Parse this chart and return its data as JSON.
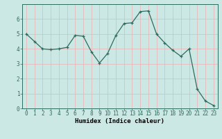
{
  "x": [
    0,
    1,
    2,
    3,
    4,
    5,
    6,
    7,
    8,
    9,
    10,
    11,
    12,
    13,
    14,
    15,
    16,
    17,
    18,
    19,
    20,
    21,
    22,
    23
  ],
  "y": [
    5.0,
    4.5,
    4.0,
    3.95,
    4.0,
    4.1,
    4.9,
    4.85,
    3.8,
    3.05,
    3.7,
    4.9,
    5.7,
    5.75,
    6.5,
    6.55,
    5.0,
    4.4,
    3.9,
    3.5,
    4.0,
    1.3,
    0.5,
    0.2
  ],
  "line_color": "#2d6b5e",
  "marker": "+",
  "marker_size": 3,
  "bg_color": "#cce8e4",
  "grid_color": "#e8b8b8",
  "xlabel": "Humidex (Indice chaleur)",
  "xlim": [
    -0.5,
    23.5
  ],
  "ylim": [
    0,
    7
  ],
  "yticks": [
    0,
    1,
    2,
    3,
    4,
    5,
    6
  ],
  "xticks": [
    0,
    1,
    2,
    3,
    4,
    5,
    6,
    7,
    8,
    9,
    10,
    11,
    12,
    13,
    14,
    15,
    16,
    17,
    18,
    19,
    20,
    21,
    22,
    23
  ],
  "xlabel_fontsize": 6.5,
  "tick_fontsize": 5.5,
  "line_width": 0.9
}
